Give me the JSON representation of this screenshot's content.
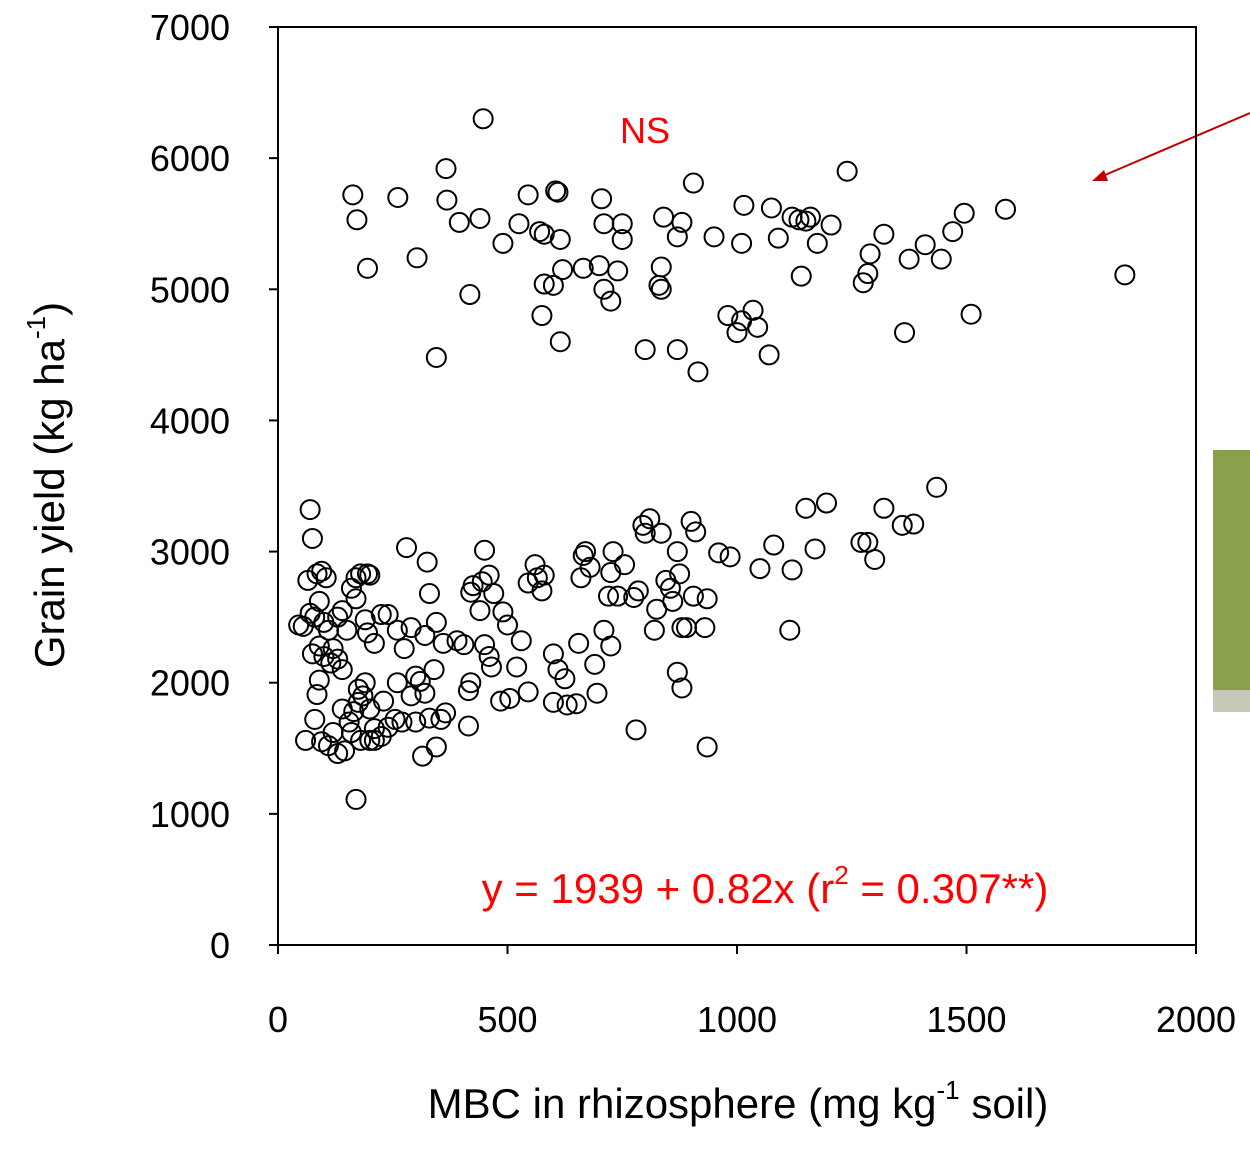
{
  "chart_data": {
    "type": "scatter",
    "x_label": [
      "MBC in rhizosphere (mg kg",
      "-1",
      " soil)"
    ],
    "y_label": [
      "Grain yield (kg ha",
      "-1",
      ")"
    ],
    "annotations": [
      "NS"
    ],
    "equation": [
      "y = 1939 + 0.82x (r",
      "2",
      " = 0.307**)"
    ],
    "annotation_color": "#ff0000",
    "xlim": [
      0,
      2000
    ],
    "xticks": [
      0,
      500,
      1000,
      1500,
      2000
    ],
    "ylim": [
      0,
      7000
    ],
    "yticks": [
      0,
      1000,
      2000,
      3000,
      4000,
      5000,
      6000,
      7000
    ],
    "series": [
      {
        "color": "#000000",
        "x": [
          447,
          366,
          163,
          172,
          261,
          368,
          395,
          440,
          195,
          303,
          345,
          418,
          490,
          525,
          545,
          570,
          580,
          605,
          610,
          615,
          620,
          600,
          580,
          575,
          615,
          665,
          700,
          705,
          710,
          710,
          725,
          740,
          750,
          750,
          835,
          830,
          835,
          840,
          870,
          880,
          905,
          800,
          870,
          915,
          950,
          1015,
          1010,
          980,
          1000,
          1010,
          1035,
          1045,
          1070,
          1075,
          1090,
          1120,
          1135,
          1150,
          1160,
          1140,
          1175,
          1205,
          1240,
          1275,
          1285,
          1290,
          1320,
          1365,
          1375,
          1410,
          1445,
          1470,
          1495,
          1510,
          1585,
          1845,
          70,
          75,
          65,
          85,
          95,
          105,
          55,
          45,
          70,
          80,
          90,
          100,
          110,
          75,
          90,
          100,
          115,
          120,
          130,
          140,
          150,
          140,
          130,
          160,
          170,
          180,
          195,
          200,
          170,
          190,
          195,
          210,
          225,
          240,
          260,
          275,
          290,
          320,
          280,
          325,
          330,
          345,
          360,
          390,
          405,
          425,
          445,
          450,
          460,
          470,
          490,
          500,
          420,
          440,
          450,
          460,
          465,
          485,
          505,
          520,
          530,
          545,
          560,
          565,
          575,
          580,
          600,
          610,
          625,
          630,
          650,
          655,
          660,
          665,
          670,
          680,
          690,
          695,
          710,
          720,
          725,
          730,
          740,
          755,
          775,
          785,
          795,
          800,
          810,
          820,
          825,
          835,
          845,
          855,
          860,
          870,
          875,
          880,
          890,
          900,
          905,
          910,
          930,
          935,
          960,
          985,
          1050,
          1080,
          1120,
          1115,
          1150,
          1170,
          1195,
          1270,
          1285,
          1300,
          1320,
          1360,
          1385,
          1435,
          725,
          780,
          870,
          880,
          935,
          170,
          130,
          145,
          60,
          95,
          110,
          120,
          155,
          165,
          175,
          185,
          175,
          190,
          200,
          210,
          225,
          240,
          255,
          270,
          290,
          300,
          310,
          320,
          330,
          345,
          315,
          355,
          365,
          340,
          415,
          420,
          415,
          545,
          600,
          85,
          80,
          90,
          140,
          160,
          180,
          200,
          210,
          230,
          260,
          300
        ],
        "values": [
          6300,
          5920,
          5720,
          5530,
          5700,
          5680,
          5510,
          5540,
          5160,
          5240,
          4480,
          4960,
          5350,
          5500,
          5720,
          5440,
          5420,
          5750,
          5740,
          5380,
          5150,
          5030,
          5040,
          4800,
          4600,
          5160,
          5180,
          5690,
          5500,
          5000,
          4910,
          5140,
          5500,
          5380,
          5170,
          5030,
          5000,
          5550,
          5400,
          5510,
          5810,
          4540,
          4540,
          4370,
          5400,
          5640,
          5350,
          4800,
          4670,
          4760,
          4840,
          4710,
          4500,
          5620,
          5390,
          5550,
          5530,
          5520,
          5550,
          5100,
          5350,
          5490,
          5900,
          5050,
          5120,
          5270,
          5420,
          4670,
          5230,
          5340,
          5230,
          5440,
          5580,
          4810,
          5610,
          5110,
          3320,
          3100,
          2780,
          2830,
          2850,
          2800,
          2430,
          2440,
          2530,
          2500,
          2620,
          2460,
          2400,
          2220,
          2280,
          2200,
          2150,
          2260,
          2180,
          2100,
          2400,
          2550,
          2500,
          2720,
          2800,
          2830,
          2830,
          2820,
          2640,
          2480,
          2380,
          2300,
          2520,
          2520,
          2400,
          2260,
          2420,
          2360,
          3030,
          2920,
          2680,
          2460,
          2300,
          2320,
          2290,
          2740,
          2770,
          3010,
          2820,
          2680,
          2540,
          2440,
          2690,
          2550,
          2290,
          2200,
          2120,
          1860,
          1880,
          2120,
          2320,
          2760,
          2900,
          2800,
          2700,
          2820,
          2220,
          2100,
          2030,
          1830,
          1840,
          2300,
          2800,
          2970,
          3000,
          2880,
          2140,
          1920,
          2400,
          2660,
          2840,
          3000,
          2660,
          2900,
          2650,
          2700,
          3200,
          3140,
          3250,
          2400,
          2560,
          3140,
          2780,
          2720,
          2620,
          3000,
          2830,
          2420,
          2420,
          3230,
          2660,
          3150,
          2420,
          2640,
          2990,
          2960,
          2870,
          3050,
          2860,
          2400,
          3330,
          3020,
          3370,
          3070,
          3070,
          2940,
          3330,
          3200,
          3210,
          3490,
          2280,
          1640,
          2080,
          1960,
          1510,
          1110,
          1460,
          1480,
          1560,
          1550,
          1520,
          1620,
          1700,
          1780,
          1850,
          1900,
          1950,
          2000,
          1800,
          1560,
          1590,
          1660,
          1720,
          1700,
          1900,
          2050,
          2010,
          1920,
          1730,
          1510,
          1440,
          1720,
          1770,
          2100,
          1940,
          2000,
          1670,
          1930,
          1850,
          1910,
          1720,
          2020,
          1800,
          1620,
          1560,
          1560,
          1650,
          1860,
          2000,
          1700
        ]
      }
    ]
  }
}
